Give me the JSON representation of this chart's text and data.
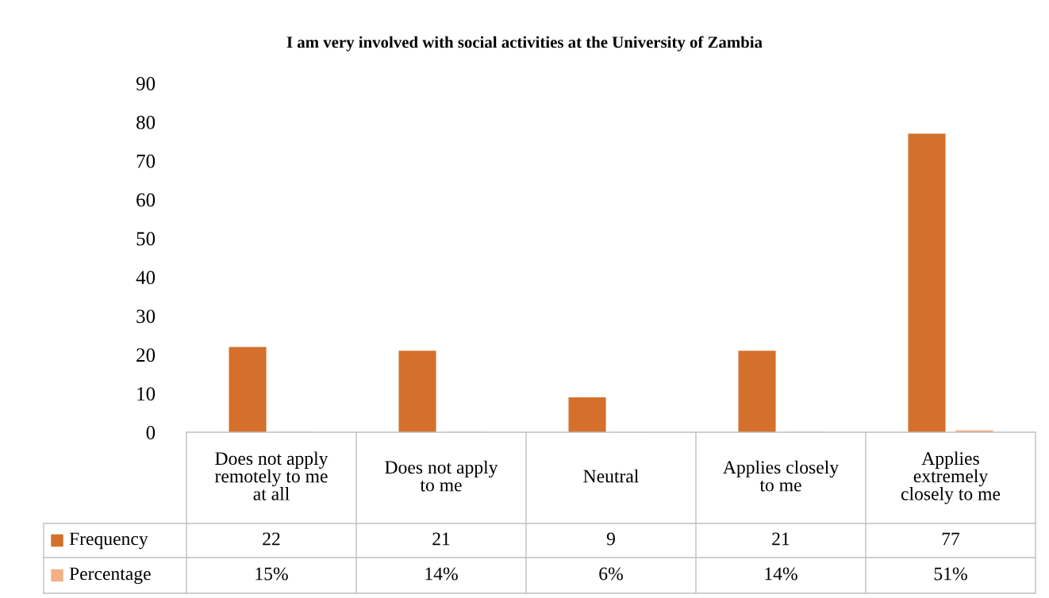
{
  "chart_data": {
    "type": "bar",
    "title": "I am very involved with social activities at the University of Zambia",
    "categories": [
      "Does not apply\nremotely to me\nat all",
      "Does not apply\nto me",
      "Neutral",
      "Applies closely\nto me",
      "Applies\nextremely\nclosely to me"
    ],
    "series": [
      {
        "name": "Frequency",
        "color": "#d4702b",
        "values": [
          22,
          21,
          9,
          21,
          77
        ],
        "value_labels": [
          "22",
          "21",
          "9",
          "21",
          "77"
        ]
      },
      {
        "name": "Percentage",
        "color": "#f4b183",
        "values": [
          0.15,
          0.14,
          0.06,
          0.14,
          0.51
        ],
        "value_labels": [
          "15%",
          "14%",
          "6%",
          "14%",
          "51%"
        ]
      }
    ],
    "ylim": [
      0,
      90
    ],
    "yticks": [
      0,
      10,
      20,
      30,
      40,
      50,
      60,
      70,
      80,
      90
    ],
    "grid": false,
    "legend": "bottom left"
  }
}
